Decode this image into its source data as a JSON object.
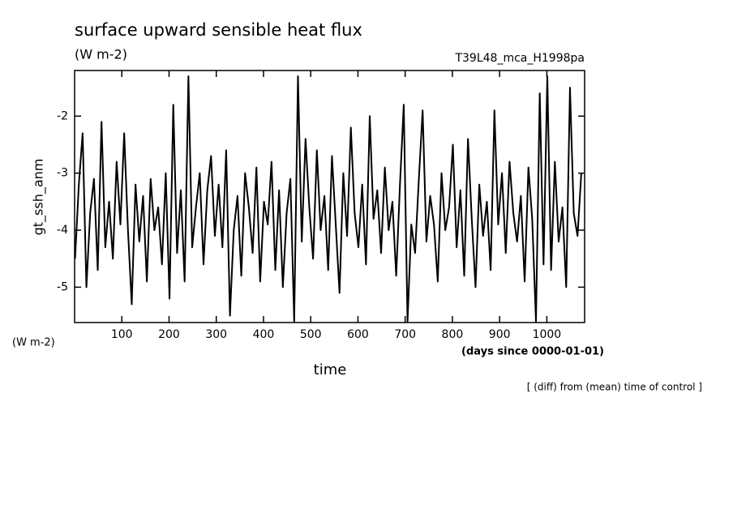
{
  "chart_data": {
    "type": "line",
    "title": "surface upward sensible heat flux",
    "subtitle": "(W m-2)",
    "annotation_right": "T39L48_mca_H1998pa",
    "y_label": "gt_ssh_anm",
    "y_unit": "(W m-2)",
    "x_label": "time",
    "x_unit": "(days since 0000-01-01)",
    "note": "[ (diff) from (mean) time of control ]",
    "color": "#000000",
    "xlim": [
      0,
      1080
    ],
    "xticks": [
      100,
      200,
      300,
      400,
      500,
      600,
      700,
      800,
      900,
      1000
    ],
    "ylim": [
      -5.62,
      -1.2
    ],
    "yticks": [
      -5,
      -4,
      -3,
      -2
    ],
    "x": [
      1,
      9,
      17,
      25,
      33,
      41,
      49,
      57,
      65,
      73,
      81,
      89,
      97,
      105,
      113,
      121,
      129,
      137,
      145,
      153,
      161,
      169,
      177,
      185,
      193,
      201,
      209,
      217,
      225,
      233,
      241,
      249,
      257,
      265,
      273,
      281,
      289,
      297,
      305,
      313,
      321,
      329,
      337,
      345,
      353,
      361,
      369,
      377,
      385,
      393,
      401,
      409,
      417,
      425,
      433,
      441,
      449,
      457,
      465,
      473,
      481,
      489,
      497,
      505,
      513,
      521,
      529,
      537,
      545,
      553,
      561,
      569,
      577,
      585,
      593,
      601,
      609,
      617,
      625,
      633,
      641,
      649,
      657,
      665,
      673,
      681,
      689,
      697,
      705,
      713,
      721,
      729,
      737,
      745,
      753,
      761,
      769,
      777,
      785,
      793,
      801,
      809,
      817,
      825,
      833,
      841,
      849,
      857,
      865,
      873,
      881,
      889,
      897,
      905,
      913,
      921,
      929,
      937,
      945,
      953,
      961,
      969,
      977,
      985,
      993,
      1001,
      1009,
      1017,
      1025,
      1033,
      1041,
      1049,
      1057,
      1065,
      1073
    ],
    "values": [
      -4.5,
      -3.2,
      -2.3,
      -5.0,
      -3.7,
      -3.1,
      -4.7,
      -2.1,
      -4.3,
      -3.5,
      -4.5,
      -2.8,
      -3.9,
      -2.3,
      -4.0,
      -5.3,
      -3.2,
      -4.2,
      -3.4,
      -4.9,
      -3.1,
      -4.0,
      -3.6,
      -4.6,
      -3.0,
      -5.2,
      -1.8,
      -4.4,
      -3.3,
      -4.9,
      -1.3,
      -4.3,
      -3.6,
      -3.0,
      -4.6,
      -3.3,
      -2.7,
      -4.1,
      -3.2,
      -4.3,
      -2.6,
      -5.5,
      -4.0,
      -3.4,
      -4.8,
      -3.0,
      -3.6,
      -4.4,
      -2.9,
      -4.9,
      -3.5,
      -3.9,
      -2.8,
      -4.7,
      -3.3,
      -5.0,
      -3.7,
      -3.1,
      -5.6,
      -1.3,
      -4.2,
      -2.4,
      -3.6,
      -4.5,
      -2.6,
      -4.0,
      -3.4,
      -4.7,
      -2.7,
      -3.9,
      -5.1,
      -3.0,
      -4.1,
      -2.2,
      -3.7,
      -4.3,
      -3.2,
      -4.6,
      -2.0,
      -3.8,
      -3.3,
      -4.4,
      -2.9,
      -4.0,
      -3.5,
      -4.8,
      -3.2,
      -1.8,
      -5.6,
      -3.9,
      -4.4,
      -3.1,
      -1.9,
      -4.2,
      -3.4,
      -3.9,
      -4.9,
      -3.0,
      -4.0,
      -3.6,
      -2.5,
      -4.3,
      -3.3,
      -4.8,
      -2.4,
      -3.8,
      -5.0,
      -3.2,
      -4.1,
      -3.5,
      -4.7,
      -1.9,
      -3.9,
      -3.0,
      -4.4,
      -2.8,
      -3.7,
      -4.2,
      -3.4,
      -4.9,
      -2.9,
      -3.8,
      -5.6,
      -1.6,
      -4.6,
      -1.3,
      -4.7,
      -2.8,
      -4.2,
      -3.6,
      -5.0,
      -1.5,
      -3.7,
      -4.1,
      -3.0
    ]
  }
}
